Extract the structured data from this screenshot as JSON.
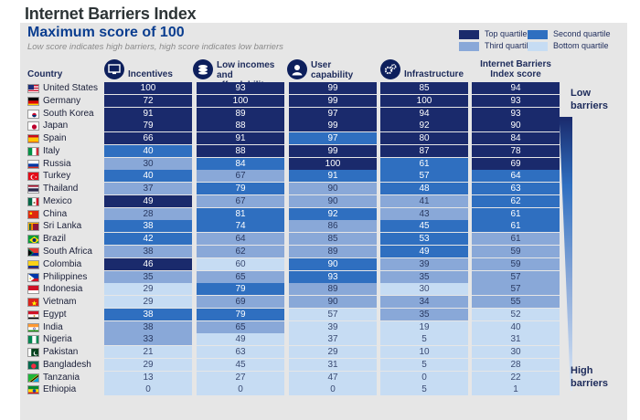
{
  "title": "Internet Barriers Index",
  "subtitle": "Maximum score of 100",
  "note": "Low score indicates high barriers, high score indicates low barriers",
  "legend": [
    {
      "label": "Top quartile",
      "color": "#1a2a6c"
    },
    {
      "label": "Second quartile",
      "color": "#2f6fc0"
    },
    {
      "label": "Third quartile",
      "color": "#89a8d8"
    },
    {
      "label": "Bottom quartile",
      "color": "#c6dcf3"
    }
  ],
  "side_labels": {
    "low": "Low barriers",
    "high": "High barriers"
  },
  "chart_data": {
    "type": "table",
    "title": "Internet Barriers Index",
    "subtitle": "Maximum score of 100",
    "columns": [
      {
        "key": "country",
        "label": "Country"
      },
      {
        "key": "incentives",
        "label": "Incentives",
        "icon": "monitor-icon"
      },
      {
        "key": "low_incomes",
        "label": "Low incomes and affordability",
        "icon": "coins-icon"
      },
      {
        "key": "user_capability",
        "label": "User capability",
        "icon": "user-icon"
      },
      {
        "key": "infrastructure",
        "label": "Infrastructure",
        "icon": "gears-icon"
      },
      {
        "key": "index_score",
        "label": "Internet Barriers Index score",
        "icon": ""
      }
    ],
    "rows": [
      {
        "country": "United States",
        "values": [
          100,
          93,
          99,
          85,
          94
        ],
        "quartiles": [
          1,
          1,
          1,
          1,
          1
        ]
      },
      {
        "country": "Germany",
        "values": [
          72,
          100,
          99,
          100,
          93
        ],
        "quartiles": [
          1,
          1,
          1,
          1,
          1
        ]
      },
      {
        "country": "South Korea",
        "values": [
          91,
          89,
          97,
          94,
          93
        ],
        "quartiles": [
          1,
          1,
          1,
          1,
          1
        ]
      },
      {
        "country": "Japan",
        "values": [
          79,
          88,
          99,
          92,
          90
        ],
        "quartiles": [
          1,
          1,
          1,
          1,
          1
        ]
      },
      {
        "country": "Spain",
        "values": [
          66,
          91,
          97,
          80,
          84
        ],
        "quartiles": [
          1,
          1,
          2,
          1,
          1
        ]
      },
      {
        "country": "Italy",
        "values": [
          40,
          88,
          99,
          87,
          78
        ],
        "quartiles": [
          2,
          1,
          1,
          1,
          1
        ]
      },
      {
        "country": "Russia",
        "values": [
          30,
          84,
          100,
          61,
          69
        ],
        "quartiles": [
          3,
          2,
          1,
          2,
          1
        ]
      },
      {
        "country": "Turkey",
        "values": [
          40,
          67,
          91,
          57,
          64
        ],
        "quartiles": [
          2,
          3,
          2,
          2,
          2
        ]
      },
      {
        "country": "Thailand",
        "values": [
          37,
          79,
          90,
          48,
          63
        ],
        "quartiles": [
          3,
          2,
          3,
          2,
          2
        ]
      },
      {
        "country": "Mexico",
        "values": [
          49,
          67,
          90,
          41,
          62
        ],
        "quartiles": [
          1,
          3,
          3,
          3,
          2
        ]
      },
      {
        "country": "China",
        "values": [
          28,
          81,
          92,
          43,
          61
        ],
        "quartiles": [
          3,
          2,
          2,
          3,
          2
        ]
      },
      {
        "country": "Sri Lanka",
        "values": [
          38,
          74,
          86,
          45,
          61
        ],
        "quartiles": [
          2,
          2,
          3,
          2,
          2
        ]
      },
      {
        "country": "Brazil",
        "values": [
          42,
          64,
          85,
          53,
          61
        ],
        "quartiles": [
          2,
          3,
          3,
          2,
          3
        ]
      },
      {
        "country": "South Africa",
        "values": [
          38,
          62,
          89,
          49,
          59
        ],
        "quartiles": [
          3,
          3,
          3,
          2,
          3
        ]
      },
      {
        "country": "Colombia",
        "values": [
          46,
          60,
          90,
          39,
          59
        ],
        "quartiles": [
          1,
          4,
          2,
          3,
          3
        ]
      },
      {
        "country": "Philippines",
        "values": [
          35,
          65,
          93,
          35,
          57
        ],
        "quartiles": [
          3,
          3,
          2,
          3,
          3
        ]
      },
      {
        "country": "Indonesia",
        "values": [
          29,
          79,
          89,
          30,
          57
        ],
        "quartiles": [
          4,
          2,
          3,
          4,
          3
        ]
      },
      {
        "country": "Vietnam",
        "values": [
          29,
          69,
          90,
          34,
          55
        ],
        "quartiles": [
          4,
          3,
          3,
          3,
          3
        ]
      },
      {
        "country": "Egypt",
        "values": [
          38,
          79,
          57,
          35,
          52
        ],
        "quartiles": [
          2,
          2,
          4,
          3,
          4
        ]
      },
      {
        "country": "India",
        "values": [
          38,
          65,
          39,
          19,
          40
        ],
        "quartiles": [
          3,
          3,
          4,
          4,
          4
        ]
      },
      {
        "country": "Nigeria",
        "values": [
          33,
          49,
          37,
          5,
          31
        ],
        "quartiles": [
          3,
          4,
          4,
          4,
          4
        ]
      },
      {
        "country": "Pakistan",
        "values": [
          21,
          63,
          29,
          10,
          30
        ],
        "quartiles": [
          4,
          4,
          4,
          4,
          4
        ]
      },
      {
        "country": "Bangladesh",
        "values": [
          29,
          45,
          31,
          5,
          28
        ],
        "quartiles": [
          4,
          4,
          4,
          4,
          4
        ]
      },
      {
        "country": "Tanzania",
        "values": [
          13,
          27,
          47,
          0,
          22
        ],
        "quartiles": [
          4,
          4,
          4,
          4,
          4
        ]
      },
      {
        "country": "Ethiopia",
        "values": [
          0,
          0,
          0,
          5,
          1
        ],
        "quartiles": [
          4,
          4,
          4,
          4,
          4
        ]
      }
    ]
  }
}
